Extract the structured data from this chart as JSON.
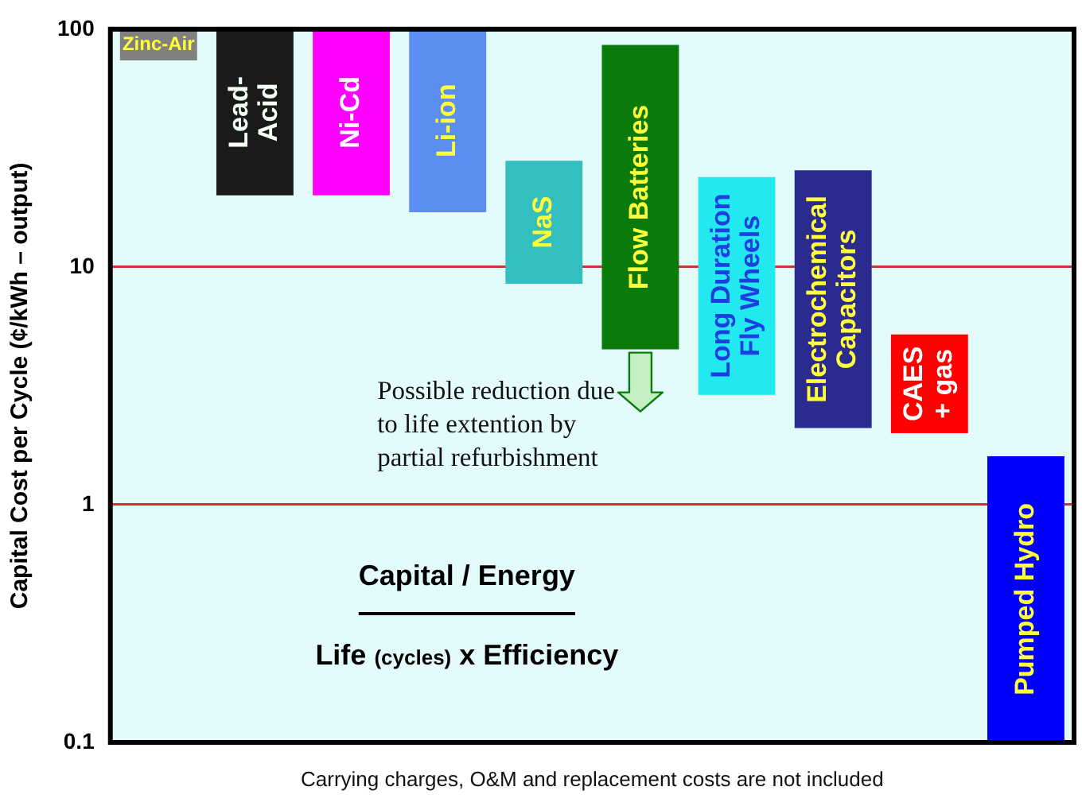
{
  "chart_data": {
    "type": "bar",
    "ylabel": "Capital Cost per Cycle (¢/kWh – output)",
    "categories": [
      "Zinc-Air",
      "Lead-\nAcid",
      "Ni-Cd",
      "Li-ion",
      "NaS",
      "Flow Batteries",
      "Long Duration\nFly Wheels",
      "Electrochemical\nCapacitors",
      "CAES\n+ gas",
      "Pumped Hydro"
    ],
    "base": [
      74,
      20,
      20,
      17,
      8.5,
      4.5,
      2.9,
      2.1,
      2,
      0.1
    ],
    "values": [
      26,
      80,
      80,
      83,
      19.5,
      81.5,
      21,
      23.4,
      3.2,
      1.5
    ],
    "colors": [
      "#808080",
      "#1a1a1a",
      "#ff00ff",
      "#5b8ef0",
      "#33bfbf",
      "#0a7a0a",
      "#22e8f0",
      "#2b2b8f",
      "#ff0000",
      "#0000ff"
    ],
    "log": true,
    "ylim": [
      0.1,
      100
    ],
    "yticks": [
      0.1,
      1,
      10,
      100
    ],
    "grid": "y",
    "tick_labels": "y",
    "annotations": [
      {
        "text": "Possible reduction due\nto life extention by\npartial refurbishment",
        "x": "Flow Batteries",
        "y": 4.5
      },
      "Capital / Energy",
      "Life (cycles) x Efficiency",
      "Carrying charges, O&M and replacement costs are not included"
    ]
  }
}
